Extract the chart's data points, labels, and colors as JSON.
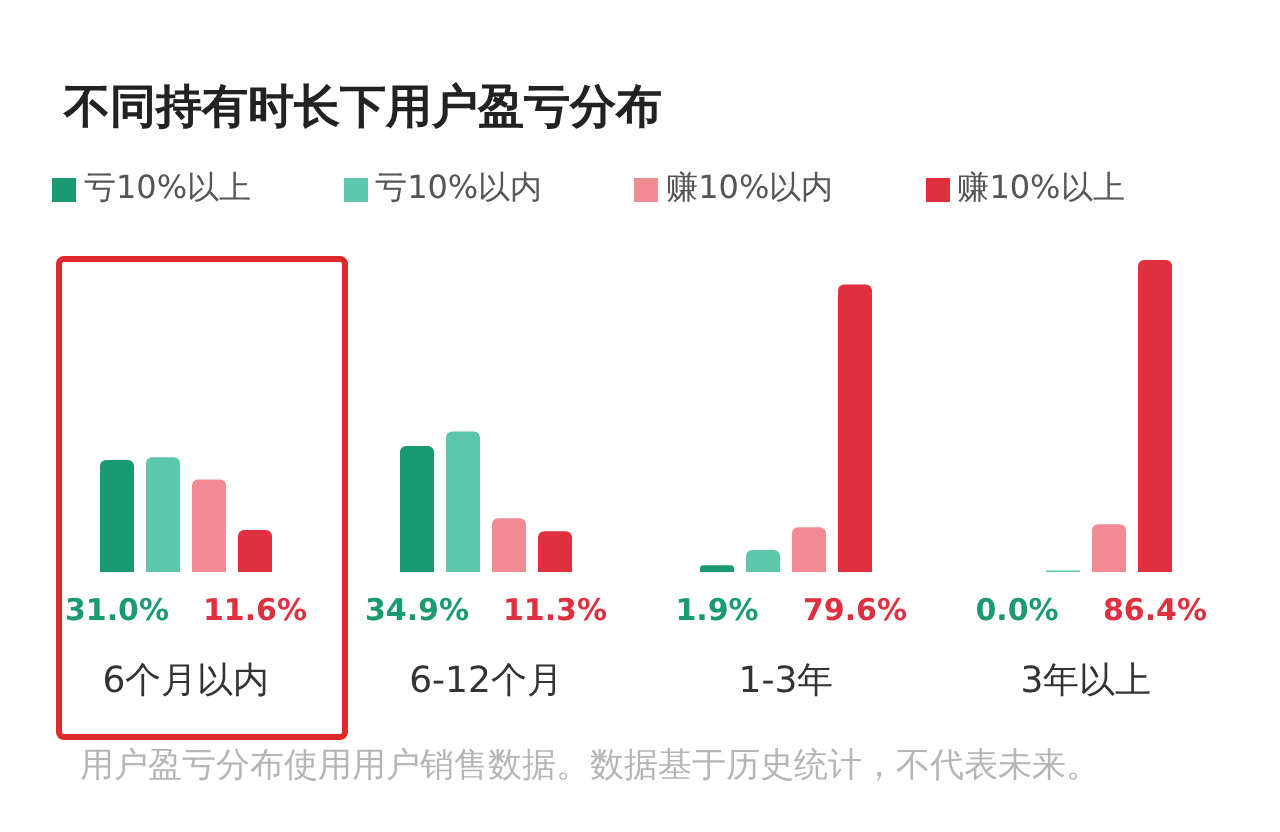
{
  "chart_data": {
    "type": "bar",
    "title": "不同持有时长下用户盈亏分布",
    "categories": [
      "6个月以内",
      "6-12个月",
      "1-3年",
      "3年以上"
    ],
    "series": [
      {
        "name": "亏10%以上",
        "color": "#1a9a72",
        "values": [
          31.0,
          34.9,
          1.9,
          0.0
        ],
        "value_labels": [
          "31.0%",
          "34.9%",
          "1.9%",
          "0.0%"
        ]
      },
      {
        "name": "亏10%以内",
        "color": "#5cc7aa",
        "values": [
          31.8,
          38.9,
          6.1,
          0.4
        ]
      },
      {
        "name": "赚10%以内",
        "color": "#f28a92",
        "values": [
          25.6,
          14.9,
          12.4,
          13.2
        ]
      },
      {
        "name": "赚10%以上",
        "color": "#e0303f",
        "values": [
          11.6,
          11.3,
          79.6,
          86.4
        ],
        "value_labels": [
          "11.6%",
          "11.3%",
          "79.6%",
          "86.4%"
        ]
      }
    ],
    "legend": "top left",
    "grid": false,
    "tick_labels": "x",
    "annotations": [
      "用户盈亏分布使用用户销售数据。数据基于历史统计，不代表未来。"
    ]
  }
}
